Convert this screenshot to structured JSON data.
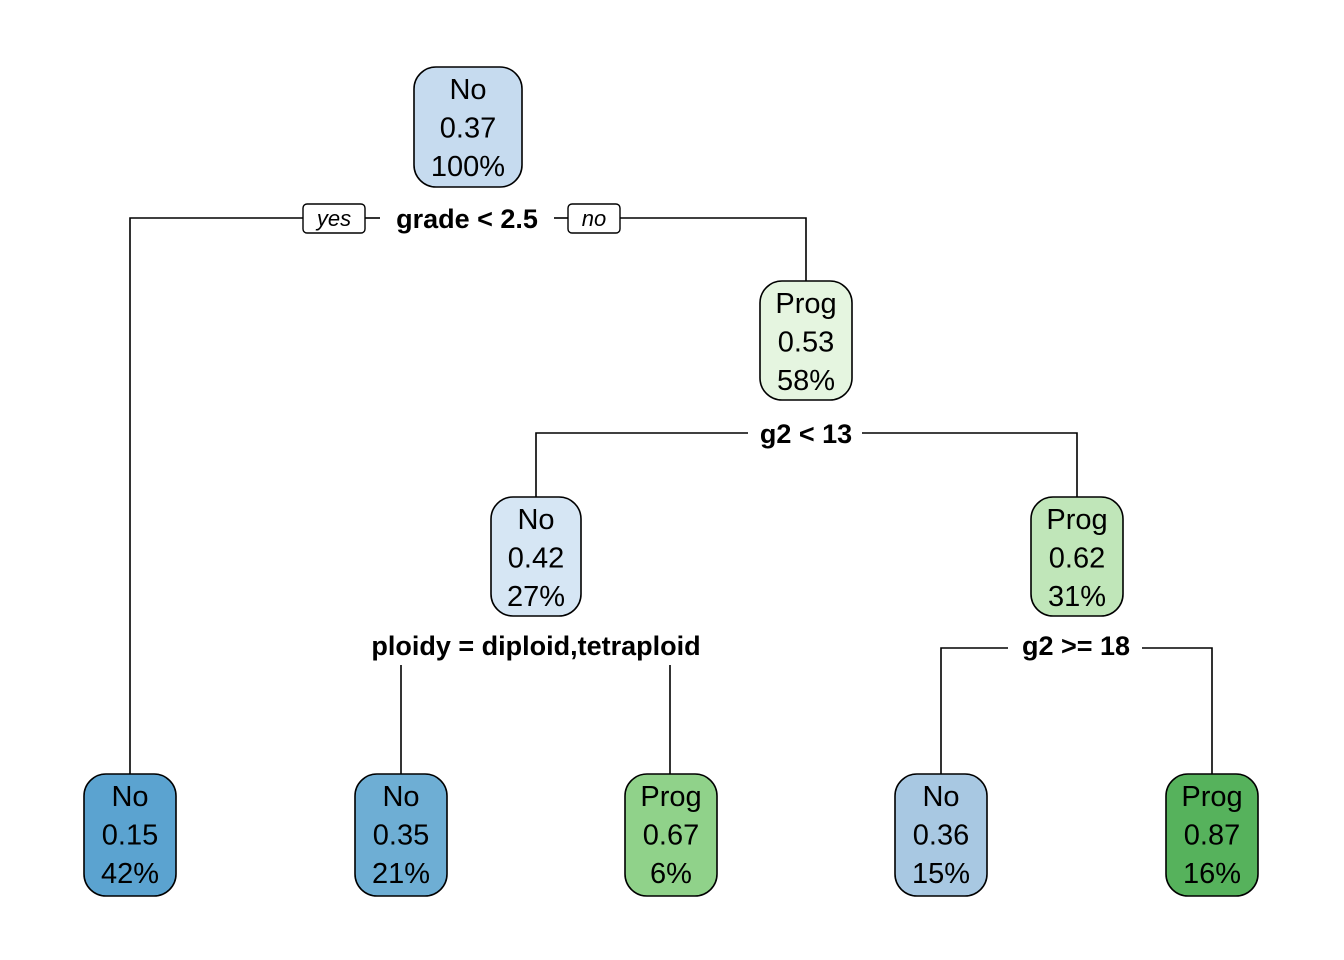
{
  "nodes": [
    {
      "id": "root",
      "class_label": "No",
      "prob": "0.37",
      "pct": "100%",
      "fill": "#c6dbef"
    },
    {
      "id": "n2",
      "class_label": "Prog",
      "prob": "0.53",
      "pct": "58%",
      "fill": "#e5f5e0"
    },
    {
      "id": "n4",
      "class_label": "No",
      "prob": "0.42",
      "pct": "27%",
      "fill": "#d6e6f4"
    },
    {
      "id": "n5",
      "class_label": "Prog",
      "prob": "0.62",
      "pct": "31%",
      "fill": "#c0e6b9"
    },
    {
      "id": "leaf1",
      "class_label": "No",
      "prob": "0.15",
      "pct": "42%",
      "fill": "#5ba3d0"
    },
    {
      "id": "leaf2",
      "class_label": "No",
      "prob": "0.35",
      "pct": "21%",
      "fill": "#6eaed4"
    },
    {
      "id": "leaf3",
      "class_label": "Prog",
      "prob": "0.67",
      "pct": "6%",
      "fill": "#90d28a"
    },
    {
      "id": "leaf4",
      "class_label": "No",
      "prob": "0.36",
      "pct": "15%",
      "fill": "#a8c8e2"
    },
    {
      "id": "leaf5",
      "class_label": "Prog",
      "prob": "0.87",
      "pct": "16%",
      "fill": "#56b25c"
    }
  ],
  "splits": {
    "root": "grade < 2.5",
    "n2": "g2 < 13",
    "n4": "ploidy = diploid,tetraploid",
    "n5": "g2 >= 18"
  },
  "branch_tags": {
    "yes": "yes",
    "no": "no"
  }
}
